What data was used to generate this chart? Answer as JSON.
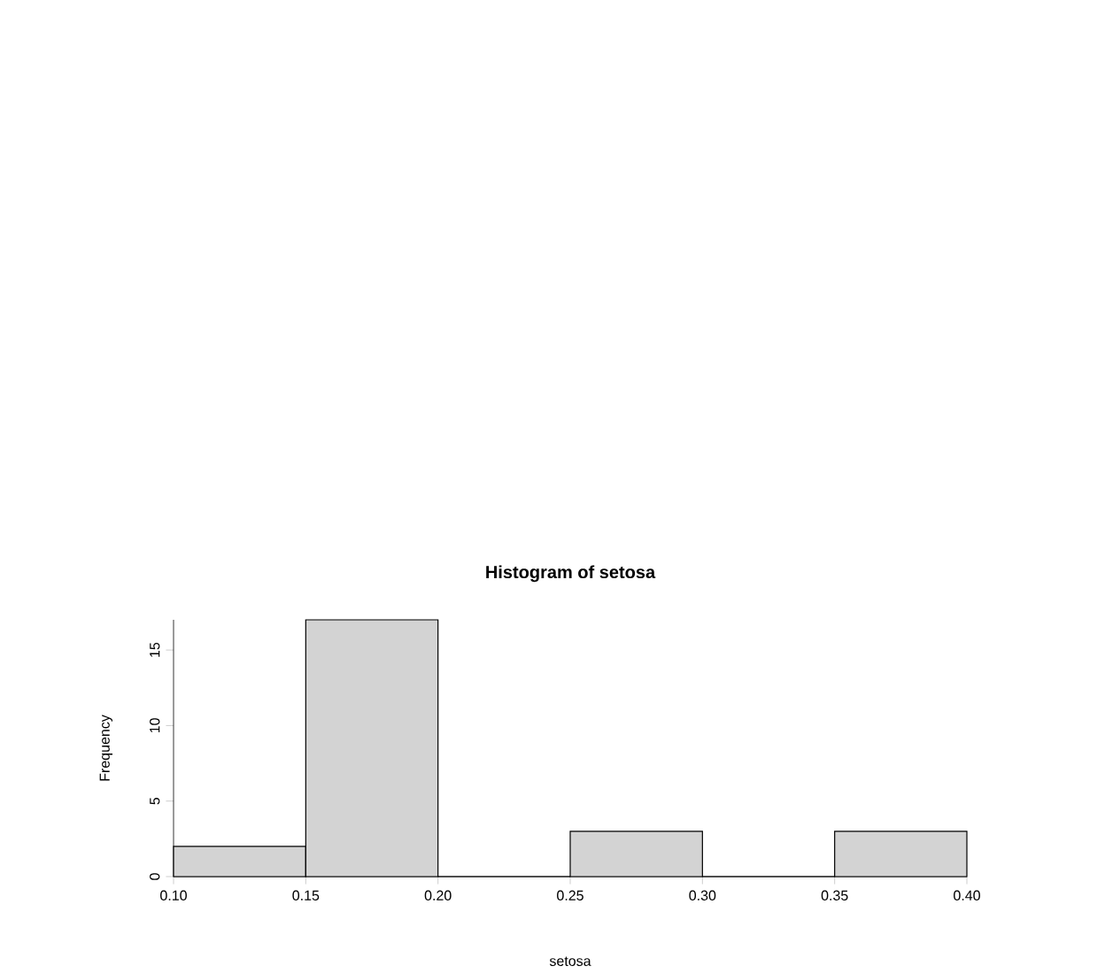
{
  "chart_data": {
    "type": "histogram",
    "title": "Histogram of setosa",
    "xlabel": "setosa",
    "ylabel": "Frequency",
    "bins": [
      0.1,
      0.15,
      0.2,
      0.25,
      0.3,
      0.35,
      0.4
    ],
    "values": [
      2,
      17,
      0,
      3,
      0,
      3
    ],
    "color": "#d3d3d3",
    "xlim": [
      0.1,
      0.4
    ],
    "ylim": [
      0,
      17
    ],
    "xticks": [
      {
        "value": 0.1,
        "label": "0.10"
      },
      {
        "value": 0.15,
        "label": "0.15"
      },
      {
        "value": 0.2,
        "label": "0.20"
      },
      {
        "value": 0.25,
        "label": "0.25"
      },
      {
        "value": 0.3,
        "label": "0.30"
      },
      {
        "value": 0.35,
        "label": "0.35"
      },
      {
        "value": 0.4,
        "label": "0.40"
      }
    ],
    "yticks": [
      0,
      5,
      10,
      15
    ]
  }
}
